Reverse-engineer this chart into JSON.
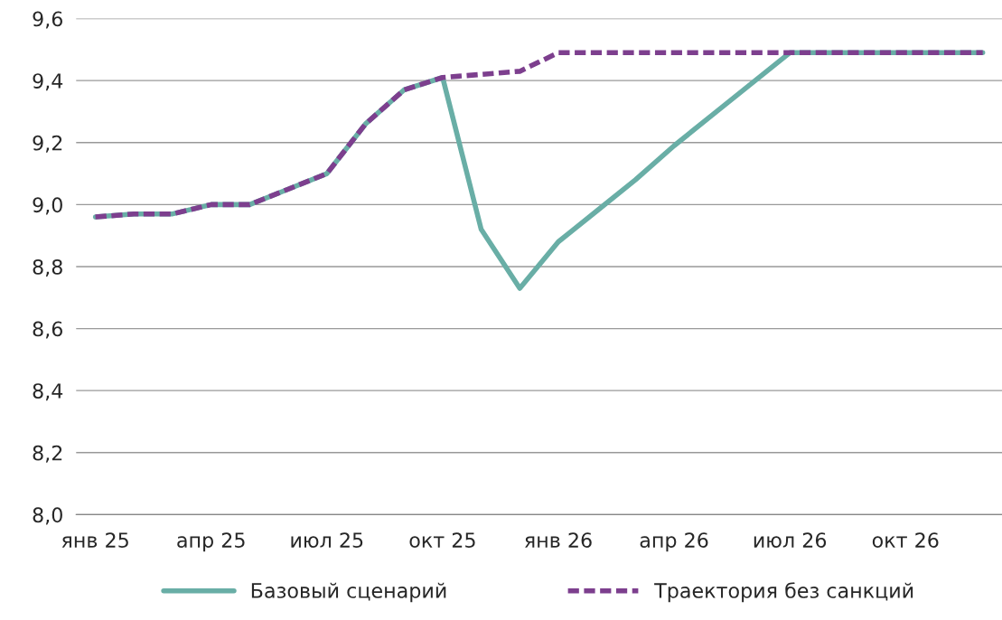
{
  "chart_data": {
    "type": "line",
    "categories": [
      "янв 25",
      null,
      null,
      "апр 25",
      null,
      null,
      "июл 25",
      null,
      null,
      "окт 25",
      null,
      null,
      "янв 26",
      null,
      null,
      "апр 26",
      null,
      null,
      "июл 26",
      null,
      null,
      "окт 26",
      null,
      null
    ],
    "series": [
      {
        "name": "Базовый сценарий",
        "color": "#69aea6",
        "line_style": "solid",
        "values": [
          8.96,
          8.97,
          8.97,
          9.0,
          9.0,
          9.05,
          9.1,
          9.26,
          9.37,
          9.41,
          8.92,
          8.73,
          8.88,
          8.98,
          9.08,
          9.19,
          9.29,
          9.39,
          9.49,
          9.49,
          9.49,
          9.49,
          9.49,
          9.49
        ]
      },
      {
        "name": "Траектория без санкций",
        "color": "#7d3f8e",
        "line_style": "dashed",
        "values": [
          8.96,
          8.97,
          8.97,
          9.0,
          9.0,
          9.05,
          9.1,
          9.26,
          9.37,
          9.41,
          9.42,
          9.43,
          9.49,
          9.49,
          9.49,
          9.49,
          9.49,
          9.49,
          9.49,
          9.49,
          9.49,
          9.49,
          9.49,
          9.49
        ]
      }
    ],
    "ylim": [
      8.0,
      9.6
    ],
    "yticks": [
      {
        "value": 8.0,
        "label": "8,0"
      },
      {
        "value": 8.2,
        "label": "8,2"
      },
      {
        "value": 8.4,
        "label": "8,4"
      },
      {
        "value": 8.6,
        "label": "8,6"
      },
      {
        "value": 8.8,
        "label": "8,8"
      },
      {
        "value": 9.0,
        "label": "9,0"
      },
      {
        "value": 9.2,
        "label": "9,2"
      },
      {
        "value": 9.4,
        "label": "9,4"
      },
      {
        "value": 9.6,
        "label": "9,6"
      }
    ],
    "grid": "y",
    "legend": "bottom",
    "marker": "none"
  }
}
